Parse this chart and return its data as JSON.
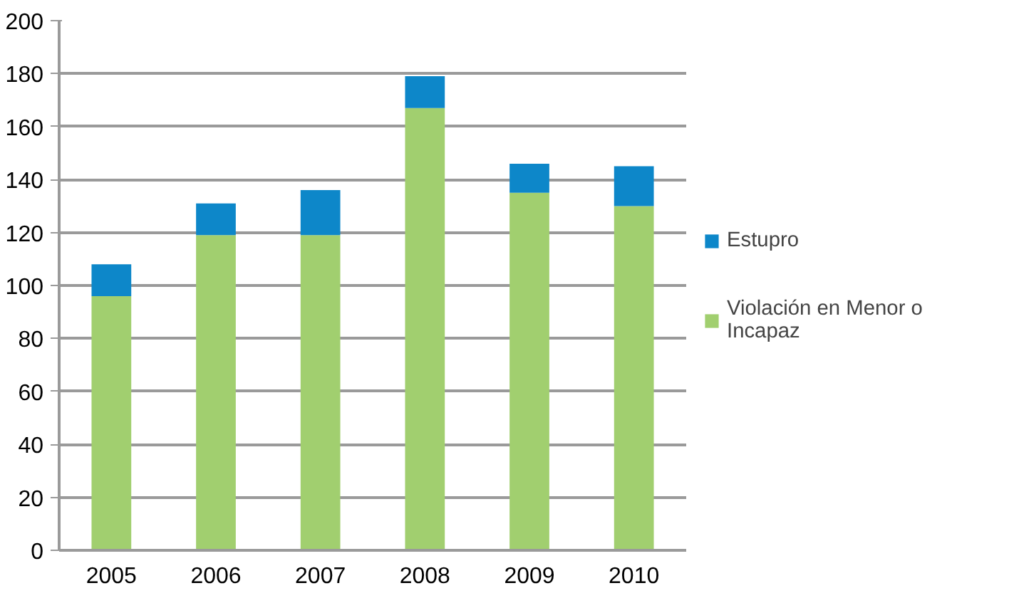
{
  "chart_data": {
    "type": "bar",
    "stacked": true,
    "categories": [
      "2005",
      "2006",
      "2007",
      "2008",
      "2009",
      "2010"
    ],
    "series": [
      {
        "name": "Violación en Menor o Incapaz",
        "color": "#a1cf6f",
        "values": [
          96,
          119,
          119,
          167,
          135,
          130
        ]
      },
      {
        "name": "Estupro",
        "color": "#0d87c9",
        "values": [
          12,
          12,
          17,
          12,
          11,
          15
        ]
      }
    ],
    "ylim": [
      0,
      200
    ],
    "yticks": [
      0,
      20,
      40,
      60,
      80,
      100,
      120,
      140,
      160,
      180,
      200
    ],
    "grid": "y",
    "legend": "right"
  }
}
